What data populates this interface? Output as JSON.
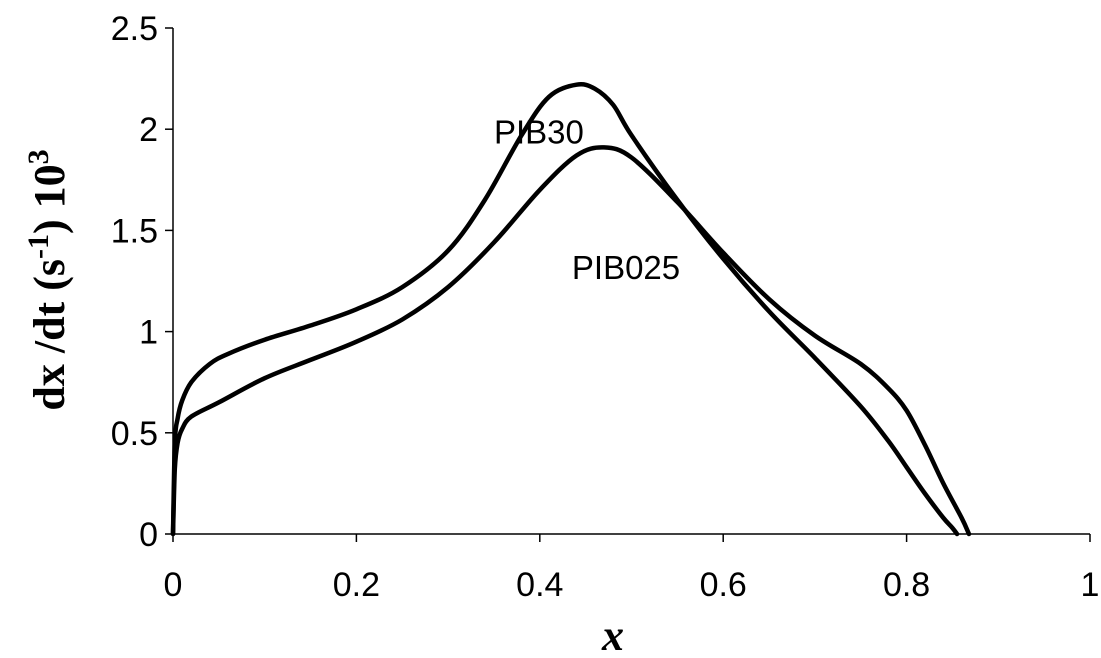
{
  "chart_data": {
    "type": "line",
    "title": "",
    "xlabel": "x",
    "ylabel": {
      "prefix": "dx /dt  (s",
      "exp1": "-1",
      "mid": ") 10",
      "exp2": "3"
    },
    "xlim": [
      0,
      1
    ],
    "ylim": [
      0,
      2.5
    ],
    "x_ticks": [
      "0",
      "0.2",
      "0.4",
      "0.6",
      "0.8",
      "1"
    ],
    "y_ticks": [
      "0",
      "0.5",
      "1",
      "1.5",
      "2",
      "2.5"
    ],
    "grid": false,
    "legend": "none",
    "line_color": "#000000",
    "series": [
      {
        "name": "PIB30",
        "x": [
          0,
          0.002,
          0.005,
          0.01,
          0.02,
          0.04,
          0.06,
          0.1,
          0.15,
          0.2,
          0.25,
          0.3,
          0.34,
          0.38,
          0.41,
          0.44,
          0.46,
          0.48,
          0.5,
          0.55,
          0.6,
          0.65,
          0.7,
          0.75,
          0.78,
          0.8,
          0.82,
          0.84,
          0.85,
          0.855
        ],
        "y": [
          0,
          0.45,
          0.57,
          0.66,
          0.75,
          0.84,
          0.89,
          0.96,
          1.03,
          1.11,
          1.22,
          1.4,
          1.65,
          1.97,
          2.16,
          2.22,
          2.2,
          2.12,
          1.97,
          1.65,
          1.36,
          1.1,
          0.87,
          0.63,
          0.46,
          0.33,
          0.2,
          0.08,
          0.03,
          0
        ]
      },
      {
        "name": "PIB025",
        "x": [
          0,
          0.002,
          0.005,
          0.01,
          0.02,
          0.05,
          0.1,
          0.15,
          0.2,
          0.25,
          0.3,
          0.35,
          0.4,
          0.44,
          0.47,
          0.5,
          0.55,
          0.6,
          0.65,
          0.7,
          0.75,
          0.78,
          0.8,
          0.82,
          0.84,
          0.86,
          0.868
        ],
        "y": [
          0,
          0.32,
          0.45,
          0.52,
          0.58,
          0.65,
          0.77,
          0.86,
          0.95,
          1.06,
          1.22,
          1.44,
          1.7,
          1.87,
          1.91,
          1.86,
          1.64,
          1.39,
          1.16,
          0.98,
          0.84,
          0.72,
          0.61,
          0.44,
          0.25,
          0.08,
          0
        ]
      }
    ],
    "annotations": [
      {
        "text": "PIB30",
        "x": 0.35,
        "y": 1.93
      },
      {
        "text": "PIB025",
        "x": 0.435,
        "y": 1.26
      }
    ]
  }
}
